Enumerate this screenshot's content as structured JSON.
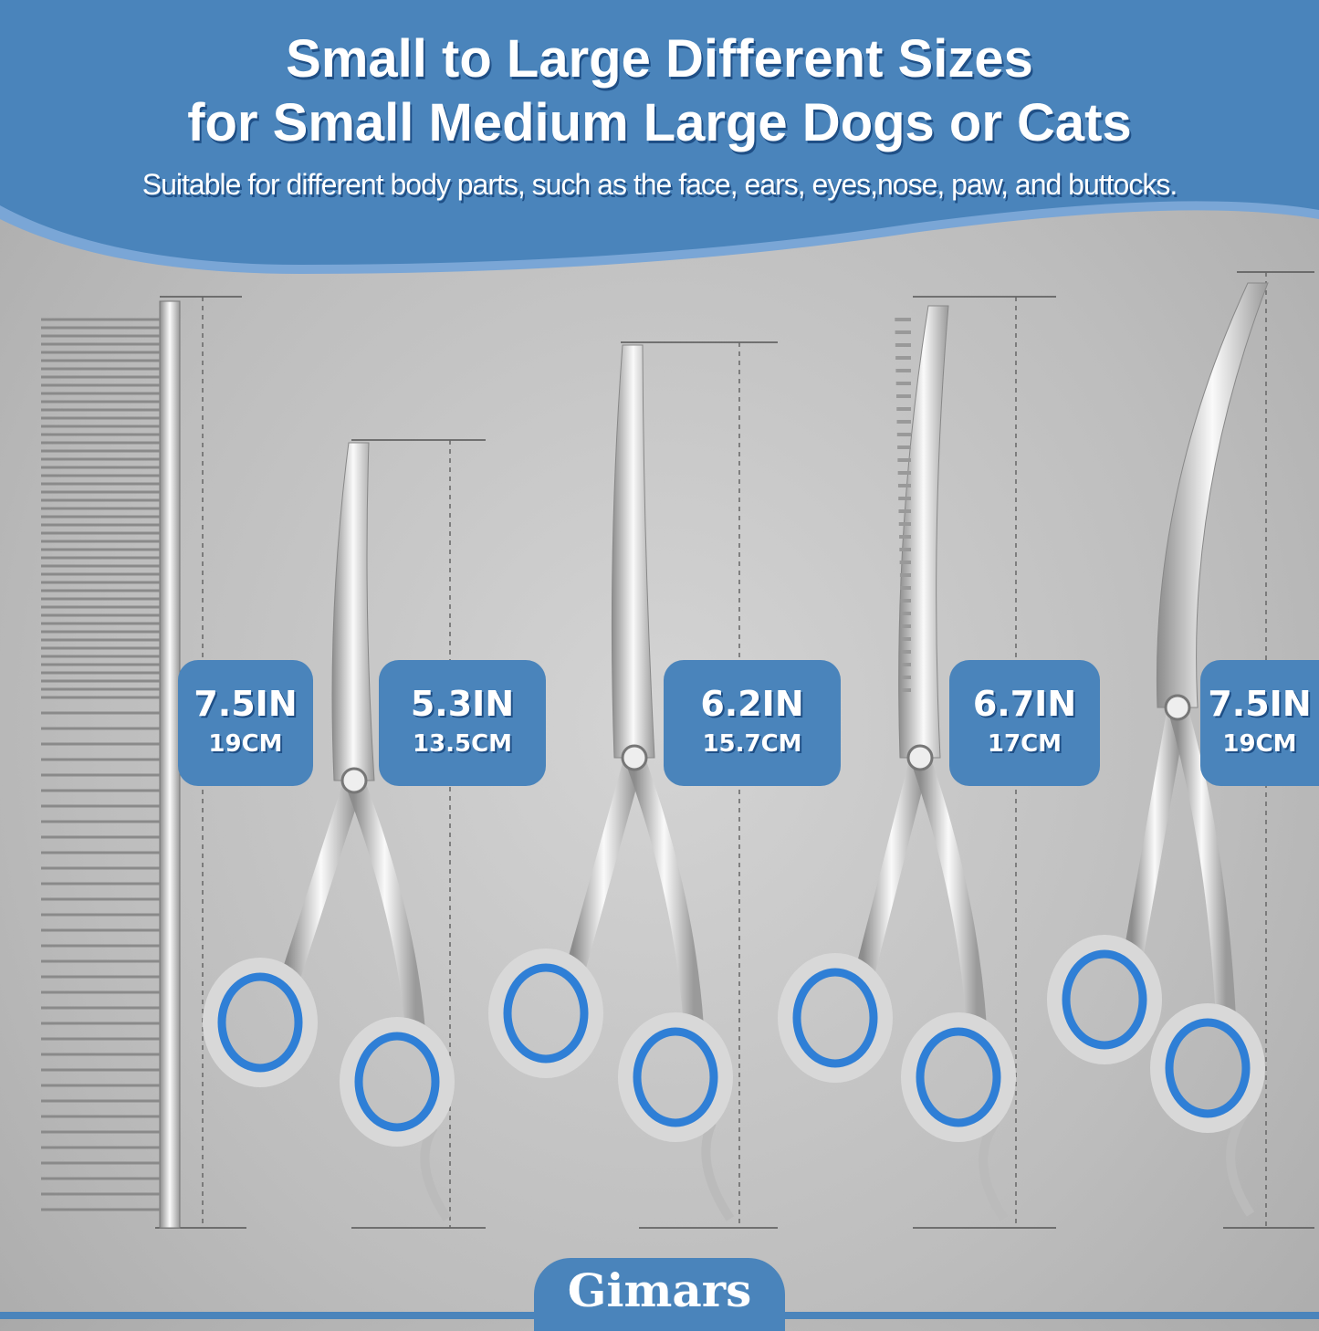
{
  "header": {
    "title_line1": "Small to Large Different Sizes",
    "title_line2": "for Small Medium Large Dogs or Cats",
    "subtitle": "Suitable for different body parts, such as the face, ears, eyes,nose, paw, and buttocks."
  },
  "sizes": [
    {
      "item": "comb",
      "inches": "7.5IN",
      "cm": "19CM"
    },
    {
      "item": "straight-scissors",
      "inches": "5.3IN",
      "cm": "13.5CM"
    },
    {
      "item": "curved-scissors",
      "inches": "6.2IN",
      "cm": "15.7CM"
    },
    {
      "item": "thinning-scissors",
      "inches": "6.7IN",
      "cm": "17CM"
    },
    {
      "item": "large-curved-scissors",
      "inches": "7.5IN",
      "cm": "19CM"
    }
  ],
  "brand": "Gimars",
  "engraving": "Gimars",
  "colors": {
    "accent": "#4a84bb",
    "background": "#c4c4c4",
    "ring": "#2f7fd6"
  }
}
